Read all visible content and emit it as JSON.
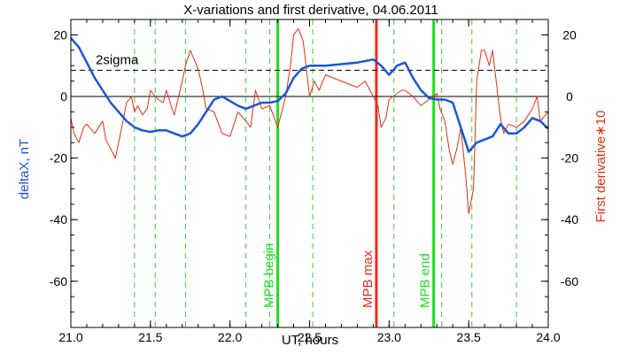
{
  "chart_data": {
    "type": "line",
    "title": "X-variations and first derivative, 04.06.2011",
    "xlabel": "UT, hours",
    "ylabel_left": "deltaX, nT",
    "ylabel_right": "First derivative∗10",
    "xlim": [
      21.0,
      24.0
    ],
    "ylim_left": [
      -75,
      25
    ],
    "ylim_right": [
      -75,
      25
    ],
    "x_ticks": [
      21.0,
      21.5,
      22.0,
      22.5,
      23.0,
      23.5,
      24.0
    ],
    "x_tick_labels": [
      "21.0",
      "21.5",
      "22.0",
      "22.5",
      "23.0",
      "23.5",
      "24.0"
    ],
    "y_ticks": [
      20,
      0,
      -20,
      -40,
      -60
    ],
    "y_tick_labels": [
      "20",
      "0",
      "-20",
      "-40",
      "-60"
    ],
    "grid": false,
    "colors": {
      "deltaX": "#1a56d6",
      "derivative": "#e03010",
      "mpb_boundary": "#22dd22",
      "mpb_max": "#ee2a1a",
      "dashed_marker": "#33cc33",
      "reference": "#000000"
    },
    "series": [
      {
        "axis": "left",
        "color": "#1a56d6",
        "x": [
          21.0,
          21.05,
          21.1,
          21.15,
          21.2,
          21.25,
          21.3,
          21.35,
          21.4,
          21.45,
          21.5,
          21.55,
          21.6,
          21.65,
          21.7,
          21.75,
          21.8,
          21.85,
          21.9,
          21.95,
          22.0,
          22.05,
          22.1,
          22.15,
          22.2,
          22.25,
          22.3,
          22.35,
          22.4,
          22.45,
          22.5,
          22.6,
          22.7,
          22.8,
          22.85,
          22.9,
          22.95,
          23.0,
          23.05,
          23.1,
          23.15,
          23.2,
          23.25,
          23.3,
          23.35,
          23.4,
          23.45,
          23.5,
          23.55,
          23.6,
          23.65,
          23.7,
          23.75,
          23.8,
          23.85,
          23.9,
          23.95,
          24.0
        ],
        "y": [
          19,
          16,
          11,
          6,
          2,
          -2,
          -5,
          -8,
          -10,
          -11,
          -11.5,
          -11,
          -11,
          -12,
          -13,
          -12,
          -9,
          -5,
          -1,
          0,
          -1.5,
          -3,
          -4,
          -3,
          -2,
          -2,
          -1.5,
          1,
          6,
          9,
          10,
          10,
          10.5,
          11,
          11.5,
          12,
          10,
          7,
          10,
          11,
          6,
          2,
          -0.5,
          -1,
          -1,
          -2,
          -10,
          -18,
          -15,
          -14,
          -13,
          -9,
          -12,
          -12,
          -10,
          -7,
          -8,
          -10.5
        ]
      },
      {
        "axis": "right",
        "color": "#e03010",
        "x": [
          21.0,
          21.02,
          21.05,
          21.08,
          21.1,
          21.15,
          21.2,
          21.22,
          21.25,
          21.28,
          21.3,
          21.32,
          21.35,
          21.38,
          21.4,
          21.42,
          21.45,
          21.48,
          21.5,
          21.53,
          21.55,
          21.58,
          21.6,
          21.63,
          21.65,
          21.7,
          21.72,
          21.75,
          21.8,
          21.83,
          21.85,
          21.9,
          21.95,
          22.0,
          22.05,
          22.1,
          22.13,
          22.16,
          22.2,
          22.25,
          22.3,
          22.35,
          22.38,
          22.4,
          22.43,
          22.46,
          22.5,
          22.53,
          22.56,
          22.6,
          22.65,
          22.7,
          22.75,
          22.8,
          22.85,
          22.9,
          22.93,
          22.95,
          22.98,
          23.0,
          23.05,
          23.08,
          23.1,
          23.15,
          23.2,
          23.25,
          23.28,
          23.3,
          23.32,
          23.35,
          23.38,
          23.4,
          23.43,
          23.45,
          23.48,
          23.5,
          23.53,
          23.55,
          23.58,
          23.6,
          23.63,
          23.65,
          23.7,
          23.72,
          23.75,
          23.8,
          23.85,
          23.9,
          23.93,
          23.95,
          24.0
        ],
        "y": [
          -7,
          -12,
          -15,
          -10,
          -9,
          -12,
          -8,
          -14,
          -17,
          -20,
          -15,
          -10,
          -2,
          0,
          -5,
          -3,
          -6,
          -4,
          2,
          0,
          -1,
          -2,
          2,
          -3,
          -6,
          5,
          10,
          15,
          9,
          2,
          -4,
          -5,
          -12,
          -13,
          -5,
          -8,
          -10,
          2,
          -4,
          -3,
          -10,
          0,
          10,
          20,
          22,
          18,
          0,
          5,
          2,
          7,
          6,
          5,
          4,
          3,
          5,
          0,
          -3,
          -10,
          -7,
          -1,
          1,
          2,
          2,
          0,
          -3,
          -1,
          0,
          1,
          -4,
          -8,
          -18,
          -22,
          -16,
          -10,
          -25,
          -38,
          -30,
          5,
          15,
          15,
          10,
          15,
          -7,
          -12,
          -9,
          -10,
          -8,
          -4,
          0,
          -8,
          -5
        ]
      }
    ],
    "vertical_markers": [
      {
        "x": 22.3,
        "label": "MPB begin",
        "color": "#22dd22",
        "style": "solid"
      },
      {
        "x": 22.92,
        "label": "MPB max",
        "color": "#ee2a1a",
        "style": "solid"
      },
      {
        "x": 23.28,
        "label": "MPB end",
        "color": "#22dd22",
        "style": "solid"
      }
    ],
    "dashed_markers_x": [
      21.4,
      21.53,
      21.72,
      22.1,
      22.25,
      22.52,
      23.03,
      23.33,
      23.52,
      23.8
    ],
    "horizontal_lines": [
      {
        "y": 0,
        "style": "solid",
        "label": ""
      },
      {
        "y": 8.5,
        "style": "dashed",
        "label": "2sigma"
      }
    ]
  }
}
